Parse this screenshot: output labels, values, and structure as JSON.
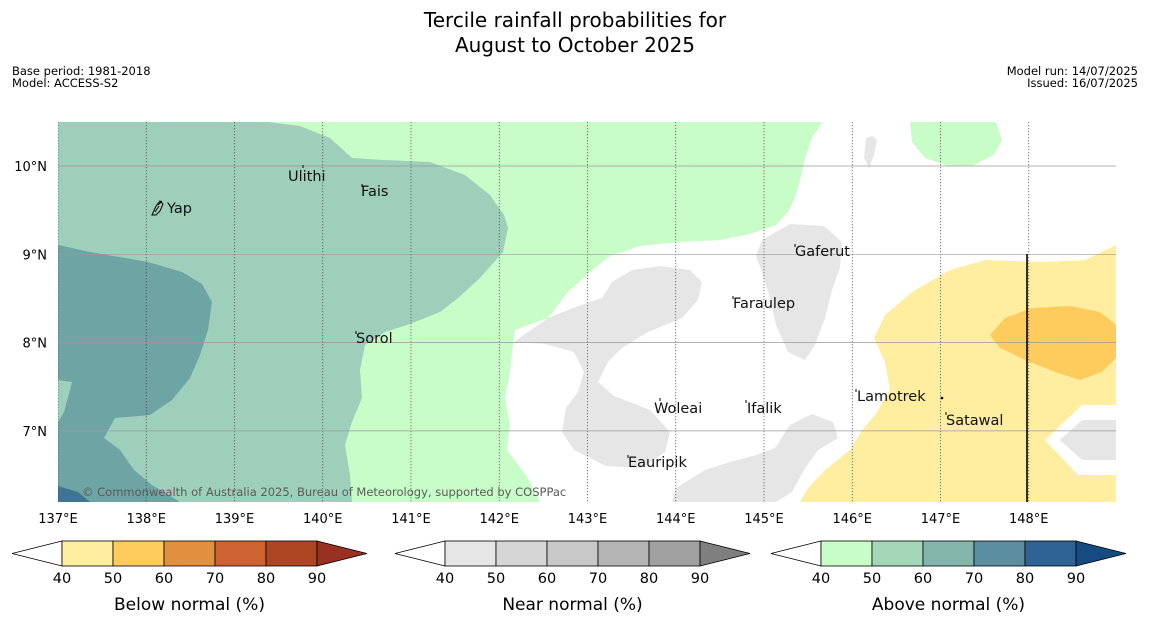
{
  "title_line1": "Tercile rainfall probabilities for",
  "title_line2": "August to October 2025",
  "base_period": "Base period: 1981-2018",
  "model": "Model: ACCESS-S2",
  "model_run": "Model run: 14/07/2025",
  "issued": "Issued: 16/07/2025",
  "copyright": "© Commonwealth of Australia 2025, Bureau of Meteorology, supported by COSPPac",
  "lon_ticks": [
    "137°E",
    "138°E",
    "139°E",
    "140°E",
    "141°E",
    "142°E",
    "143°E",
    "144°E",
    "145°E",
    "146°E",
    "147°E",
    "148°E"
  ],
  "lat_ticks": [
    "10°N",
    "9°N",
    "8°N",
    "7°N"
  ],
  "places": {
    "yap": "Yap",
    "ulithi": "Ulithi",
    "fais": "Fais",
    "gaferut": "Gaferut",
    "faraulep": "Faraulep",
    "sorol": "Sorol",
    "lamotrek": "Lamotrek",
    "woleai": "Woleai",
    "ifalik": "Ifalik",
    "satawal": "Satawal",
    "eauripik": "Eauripik"
  },
  "colorbars": [
    {
      "label": "Below normal (%)",
      "ticks": [
        "40",
        "50",
        "60",
        "70",
        "80",
        "90"
      ],
      "colors": [
        "#ffffff",
        "#ffeda0",
        "#fecc5c",
        "#e0903f",
        "#cc6331",
        "#ae4523",
        "#983121"
      ]
    },
    {
      "label": "Near normal (%)",
      "ticks": [
        "40",
        "50",
        "60",
        "70",
        "80",
        "90"
      ],
      "colors": [
        "#ffffff",
        "#e6e6e6",
        "#d6d6d6",
        "#c8c8c8",
        "#b4b4b4",
        "#a0a0a0",
        "#7f7f7f"
      ]
    },
    {
      "label": "Above normal (%)",
      "ticks": [
        "40",
        "50",
        "60",
        "70",
        "80",
        "90"
      ],
      "colors": [
        "#ffffff",
        "#c8fdc8",
        "#a4d7b7",
        "#84b5ab",
        "#5b8fa0",
        "#2f6396",
        "#164b80"
      ]
    }
  ]
}
